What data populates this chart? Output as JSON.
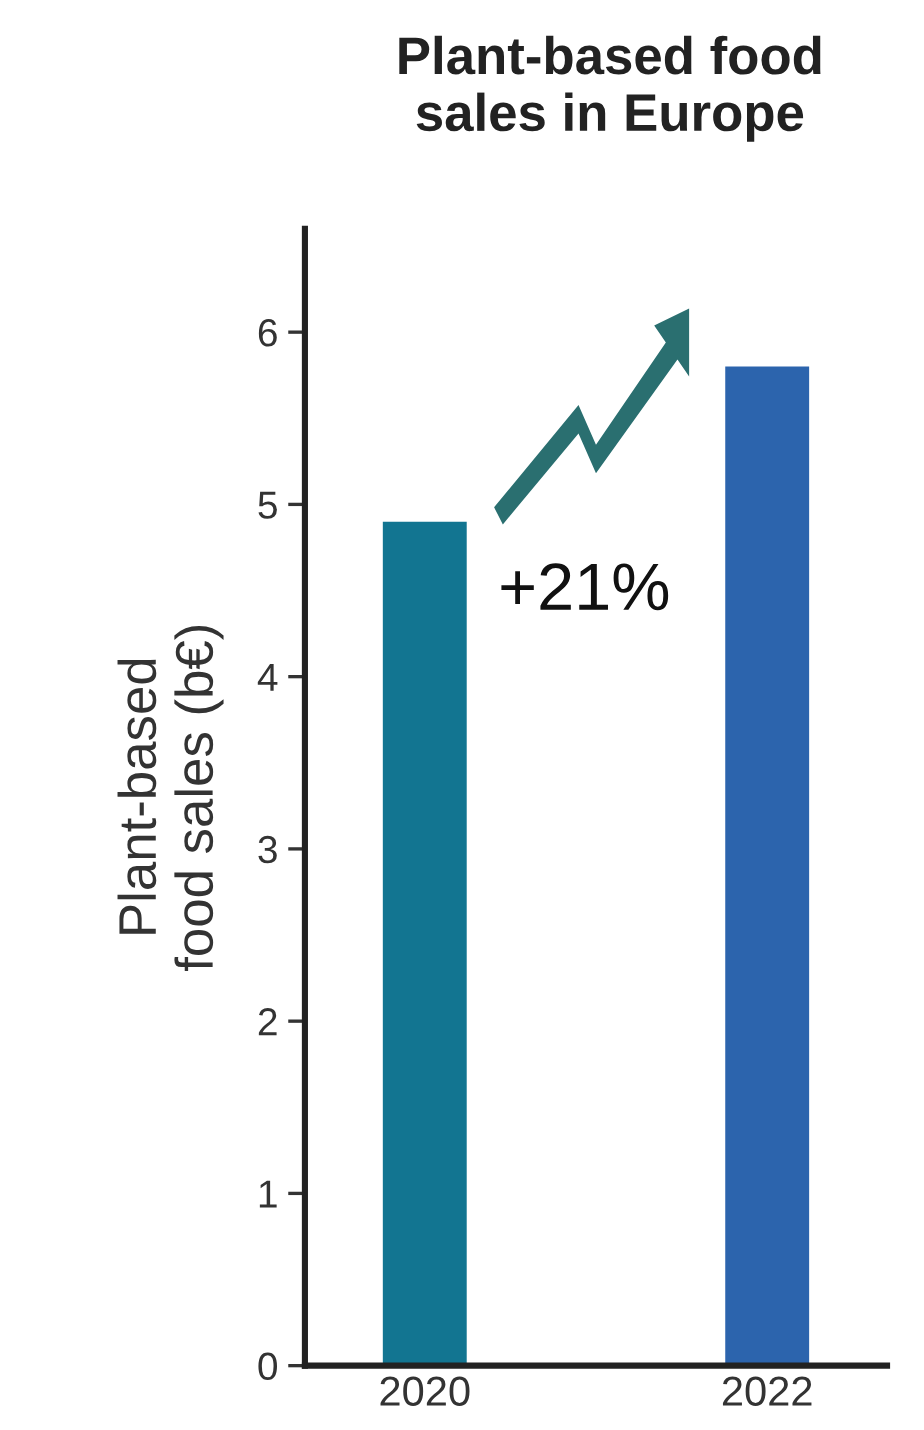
{
  "chart_data": {
    "type": "bar",
    "title": "Plant-based food\nsales in Europe",
    "ylabel": "Plant-based\nfood sales (b€)",
    "categories": [
      "2020",
      "2022"
    ],
    "values": [
      4.9,
      5.8
    ],
    "colors": [
      "#127591",
      "#2c64ad"
    ],
    "ylim": [
      0,
      6.6
    ],
    "yticks": [
      0,
      1,
      2,
      3,
      4,
      5,
      6
    ],
    "grid": false,
    "annotations": [
      "+21%"
    ]
  }
}
